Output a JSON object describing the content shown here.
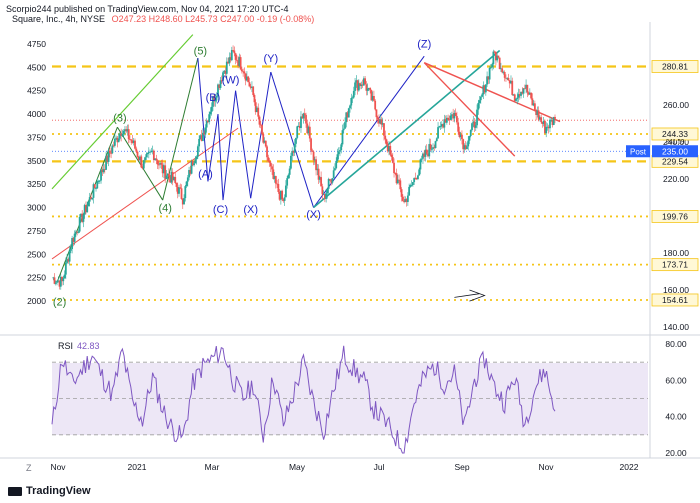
{
  "header": {
    "publisher": "Scorpio244 published on TradingView.com, Nov 04, 2021 17:20 UTC-4",
    "symbol": "Square, Inc., 4h, NYSE",
    "ohlc": "O247.23  H248.60  L245.73  C247.00  -0.19 (-0.08%)"
  },
  "rsi_label": "RSI",
  "rsi_value": "42.83",
  "brand": "TradingView",
  "scale_button": "Z",
  "colors": {
    "price": "#131722",
    "up": "#26a69a",
    "down": "#ef5350",
    "rsi": "#7e57c2",
    "gold": "#f5c518",
    "blue_wave": "#1f23c5",
    "green_wave": "#2e7d32",
    "teal_line": "#26a69a",
    "red_line": "#ef5350"
  },
  "chart_data": [
    {
      "type": "line",
      "title": "",
      "x_ticks": [
        "Nov",
        "2021",
        "Mar",
        "May",
        "Jul",
        "Sep",
        "Nov",
        "2022"
      ],
      "y_left_ticks": [
        2000,
        2250,
        2500,
        2750,
        3000,
        3250,
        3500,
        3750,
        4000,
        4250,
        4500,
        4750
      ],
      "y_right_ticks": [
        140.0,
        160.0,
        180.0,
        200.0,
        220.0,
        240.0,
        260.0,
        280.0
      ],
      "ylim_left": [
        2000,
        4850
      ],
      "horizontal_levels": [
        {
          "value": 280.81,
          "label": "280.81",
          "style": "dashed",
          "color": "#f5c518"
        },
        {
          "value": 244.33,
          "label": "244.33",
          "style": "dotted",
          "color": "#f5c518"
        },
        {
          "value": 229.54,
          "label": "229.54",
          "style": "dashed",
          "color": "#f5c518"
        },
        {
          "value": 199.76,
          "label": "199.76",
          "style": "dotted",
          "color": "#f5c518"
        },
        {
          "value": 173.71,
          "label": "173.71",
          "style": "dotted",
          "color": "#f5c518"
        },
        {
          "value": 154.61,
          "label": "154.61",
          "style": "dotted",
          "color": "#f5c518"
        }
      ],
      "last_price_tag": {
        "label": "Post",
        "value": "235.00",
        "mini": "241.59"
      },
      "price_series": {
        "name": "SQ",
        "x": [
          0,
          2,
          4,
          6,
          8,
          10,
          12,
          14,
          16,
          18,
          20,
          22,
          24,
          26,
          28,
          30,
          32,
          34,
          36,
          38,
          40,
          42,
          44,
          46,
          48,
          50,
          52,
          54,
          56,
          58,
          60,
          62,
          64,
          66,
          68,
          70,
          72,
          74,
          76,
          78,
          80,
          82,
          84,
          86,
          88,
          90,
          92,
          94,
          96,
          98,
          100
        ],
        "y": [
          2250,
          2200,
          2650,
          2900,
          3150,
          3400,
          3650,
          3850,
          3700,
          3450,
          3600,
          3400,
          3300,
          3100,
          3500,
          3800,
          4150,
          4450,
          4650,
          4500,
          4200,
          3700,
          3300,
          3050,
          3650,
          4050,
          3550,
          3100,
          3400,
          3850,
          4300,
          4350,
          4100,
          3800,
          3400,
          3050,
          3300,
          3550,
          3700,
          3950,
          4000,
          3650,
          3900,
          4300,
          4650,
          4450,
          4200,
          4300,
          4050,
          3850,
          3950
        ]
      },
      "wave_labels": [
        "(2)",
        "(3)",
        "(4)",
        "(5)",
        "(A)",
        "(B)",
        "(C)",
        "(W)",
        "(X)",
        "(Y)",
        "(X)",
        "(Z)"
      ]
    },
    {
      "type": "line",
      "title": "RSI",
      "y_ticks": [
        20.0,
        40.0,
        60.0,
        80.0
      ],
      "ylim": [
        20,
        85
      ],
      "bands": [
        30,
        50,
        70
      ],
      "rsi_series": {
        "name": "RSI",
        "x": [
          0,
          2,
          4,
          6,
          8,
          10,
          12,
          14,
          16,
          18,
          20,
          22,
          24,
          26,
          28,
          30,
          32,
          34,
          36,
          38,
          40,
          42,
          44,
          46,
          48,
          50,
          52,
          54,
          56,
          58,
          60,
          62,
          64,
          66,
          68,
          70,
          72,
          74,
          76,
          78,
          80,
          82,
          84,
          86,
          88,
          90,
          92,
          94,
          96,
          98,
          100
        ],
        "y": [
          34,
          72,
          58,
          66,
          74,
          62,
          52,
          76,
          48,
          38,
          62,
          44,
          33,
          28,
          58,
          68,
          72,
          77,
          60,
          50,
          58,
          30,
          62,
          36,
          52,
          70,
          48,
          32,
          55,
          74,
          66,
          60,
          44,
          38,
          30,
          22,
          48,
          62,
          68,
          58,
          64,
          34,
          60,
          72,
          56,
          48,
          62,
          36,
          56,
          66,
          43
        ]
      }
    }
  ]
}
